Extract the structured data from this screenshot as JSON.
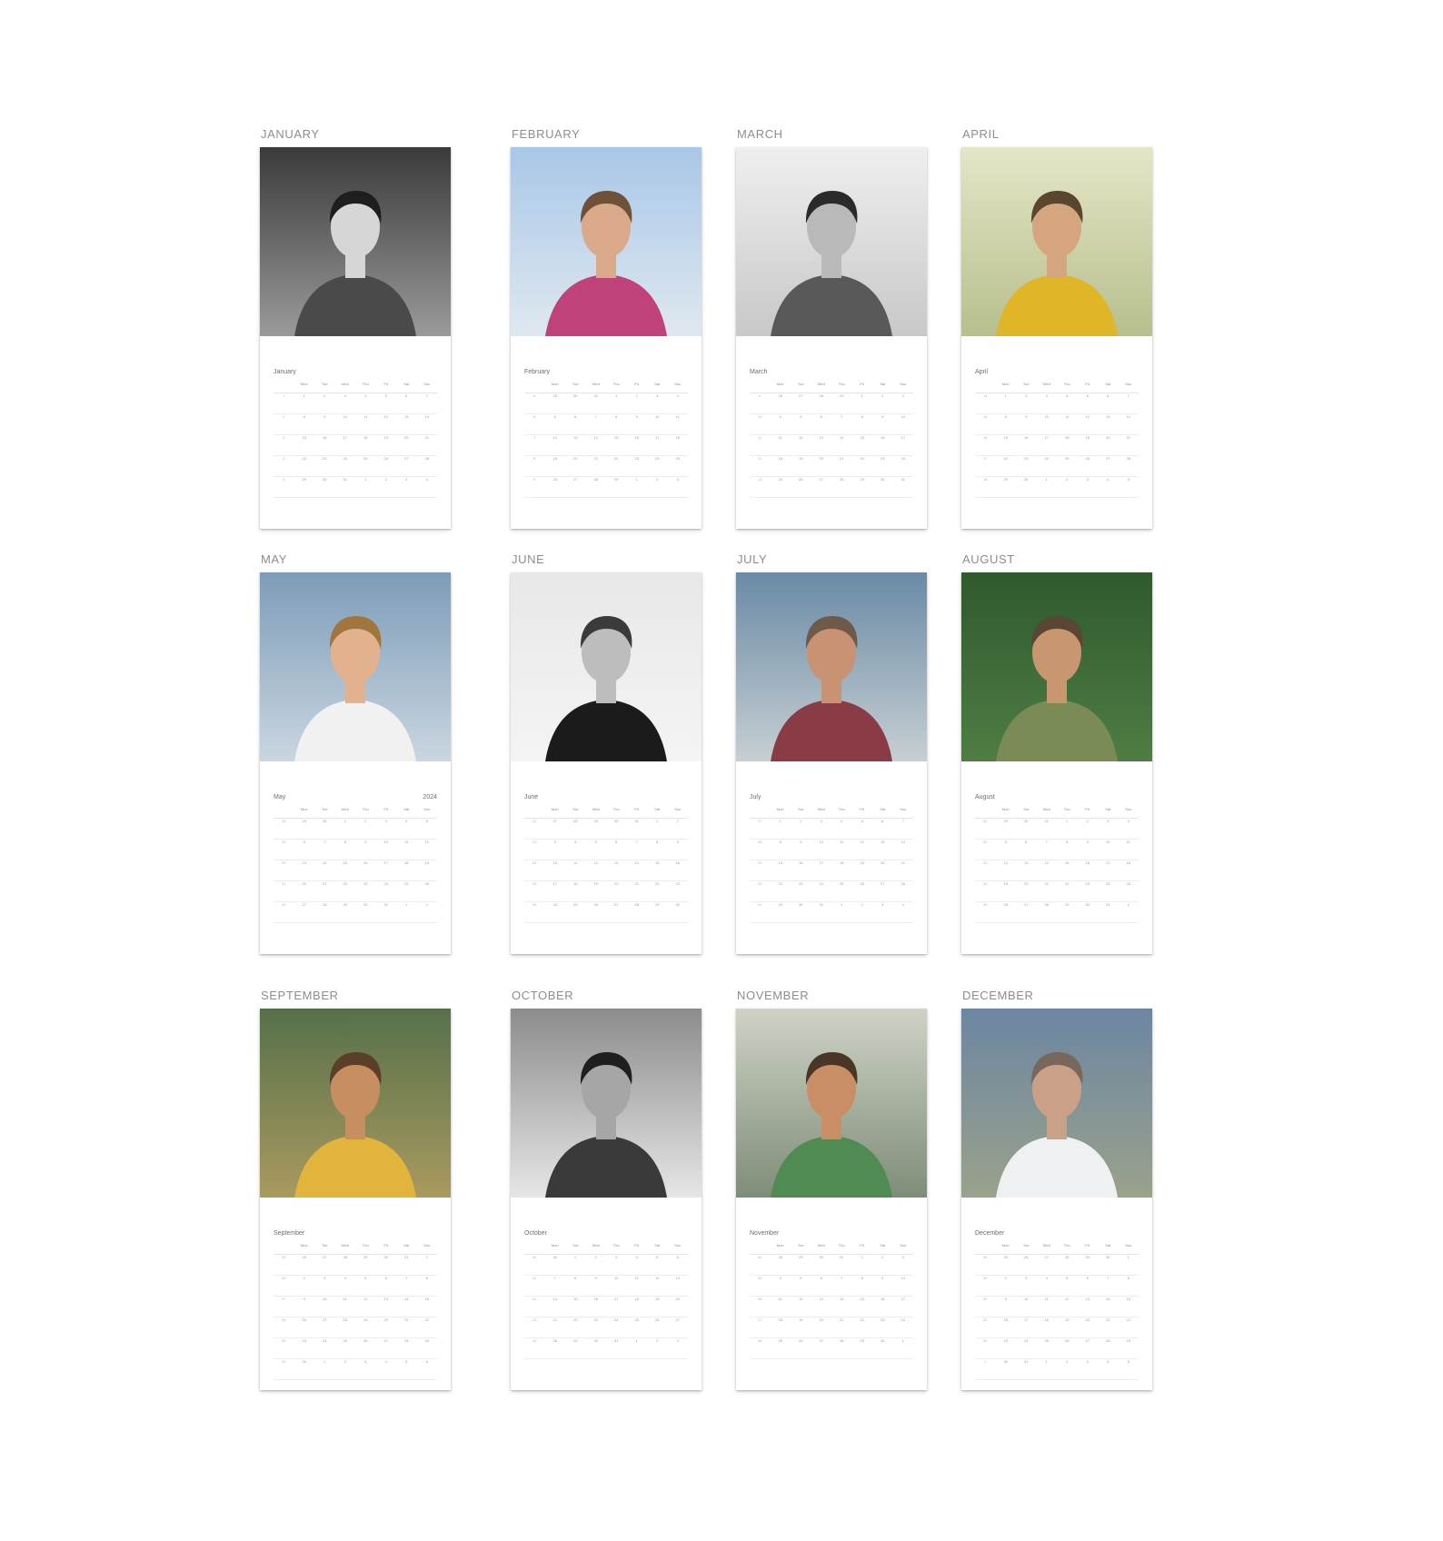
{
  "calendar": {
    "year": "2024",
    "weekday_headers": [
      "",
      "Mon",
      "Tue",
      "Wed",
      "Thu",
      "Fri",
      "Sat",
      "Sun"
    ],
    "months": [
      {
        "title": "JANUARY",
        "name": "January",
        "show_year": false,
        "photo": {
          "kind": "bw",
          "bg": "#3a3a3a",
          "bg2": "#9a9a9a",
          "skin": "#d6d6d6",
          "hair": "#1e1e1e",
          "top": "#4a4a4a"
        },
        "rows": [
          [
            "1",
            "1",
            "2",
            "3",
            "4",
            "5",
            "6",
            "7"
          ],
          [
            "2",
            "8",
            "9",
            "10",
            "11",
            "12",
            "13",
            "14"
          ],
          [
            "3",
            "15",
            "16",
            "17",
            "18",
            "19",
            "20",
            "21"
          ],
          [
            "4",
            "22",
            "23",
            "24",
            "25",
            "26",
            "27",
            "28"
          ],
          [
            "5",
            "29",
            "30",
            "31",
            "1",
            "2",
            "3",
            "4"
          ]
        ]
      },
      {
        "title": "FEBRUARY",
        "name": "February",
        "show_year": false,
        "photo": {
          "kind": "color",
          "bg": "#a9c7e8",
          "bg2": "#dfe8ef",
          "skin": "#d9a98a",
          "hair": "#6e5138",
          "top": "#c0427a"
        },
        "rows": [
          [
            "5",
            "29",
            "30",
            "31",
            "1",
            "2",
            "3",
            "4"
          ],
          [
            "6",
            "5",
            "6",
            "7",
            "8",
            "9",
            "10",
            "11"
          ],
          [
            "7",
            "12",
            "13",
            "14",
            "15",
            "16",
            "17",
            "18"
          ],
          [
            "8",
            "19",
            "20",
            "21",
            "22",
            "23",
            "24",
            "25"
          ],
          [
            "9",
            "26",
            "27",
            "28",
            "29",
            "1",
            "2",
            "3"
          ]
        ]
      },
      {
        "title": "MARCH",
        "name": "March",
        "show_year": false,
        "photo": {
          "kind": "bw",
          "bg": "#efefef",
          "bg2": "#c8c8c8",
          "skin": "#b9b9b9",
          "hair": "#2a2a2a",
          "top": "#595959"
        },
        "rows": [
          [
            "9",
            "26",
            "27",
            "28",
            "29",
            "1",
            "2",
            "3"
          ],
          [
            "10",
            "4",
            "5",
            "6",
            "7",
            "8",
            "9",
            "10"
          ],
          [
            "11",
            "11",
            "12",
            "13",
            "14",
            "15",
            "16",
            "17"
          ],
          [
            "12",
            "18",
            "19",
            "20",
            "21",
            "22",
            "23",
            "24"
          ],
          [
            "13",
            "25",
            "26",
            "27",
            "28",
            "29",
            "30",
            "31"
          ]
        ]
      },
      {
        "title": "APRIL",
        "name": "April",
        "show_year": false,
        "photo": {
          "kind": "color",
          "bg": "#e4e6c6",
          "bg2": "#b7bf8d",
          "skin": "#d4a57f",
          "hair": "#5a452f",
          "top": "#e0b528"
        },
        "rows": [
          [
            "14",
            "1",
            "2",
            "3",
            "4",
            "5",
            "6",
            "7"
          ],
          [
            "15",
            "8",
            "9",
            "10",
            "11",
            "12",
            "13",
            "14"
          ],
          [
            "16",
            "15",
            "16",
            "17",
            "18",
            "19",
            "20",
            "21"
          ],
          [
            "17",
            "22",
            "23",
            "24",
            "25",
            "26",
            "27",
            "28"
          ],
          [
            "18",
            "29",
            "30",
            "1",
            "2",
            "3",
            "4",
            "5"
          ]
        ]
      },
      {
        "title": "MAY",
        "name": "May",
        "show_year": true,
        "photo": {
          "kind": "color",
          "bg": "#7e9cb8",
          "bg2": "#c9d6e0",
          "skin": "#e2b28e",
          "hair": "#a0763e",
          "top": "#f1f1f1"
        },
        "rows": [
          [
            "18",
            "29",
            "30",
            "1",
            "2",
            "3",
            "4",
            "5"
          ],
          [
            "19",
            "6",
            "7",
            "8",
            "9",
            "10",
            "11",
            "12"
          ],
          [
            "20",
            "13",
            "14",
            "15",
            "16",
            "17",
            "18",
            "19"
          ],
          [
            "21",
            "20",
            "21",
            "22",
            "23",
            "24",
            "25",
            "26"
          ],
          [
            "22",
            "27",
            "28",
            "29",
            "30",
            "31",
            "1",
            "2"
          ]
        ]
      },
      {
        "title": "JUNE",
        "name": "June",
        "show_year": false,
        "photo": {
          "kind": "bw",
          "bg": "#e8e8e8",
          "bg2": "#f4f4f4",
          "skin": "#bdbdbd",
          "hair": "#3b3b3b",
          "top": "#1b1b1b"
        },
        "rows": [
          [
            "22",
            "27",
            "28",
            "29",
            "30",
            "31",
            "1",
            "2"
          ],
          [
            "23",
            "3",
            "4",
            "5",
            "6",
            "7",
            "8",
            "9"
          ],
          [
            "24",
            "10",
            "11",
            "12",
            "13",
            "14",
            "15",
            "16"
          ],
          [
            "25",
            "17",
            "18",
            "19",
            "20",
            "21",
            "22",
            "23"
          ],
          [
            "26",
            "24",
            "25",
            "26",
            "27",
            "28",
            "29",
            "30"
          ]
        ]
      },
      {
        "title": "JULY",
        "name": "July",
        "show_year": false,
        "photo": {
          "kind": "color",
          "bg": "#6a8aa6",
          "bg2": "#c7cfd2",
          "skin": "#c99272",
          "hair": "#6d5a49",
          "top": "#8a3c46"
        },
        "rows": [
          [
            "27",
            "1",
            "2",
            "3",
            "4",
            "5",
            "6",
            "7"
          ],
          [
            "28",
            "8",
            "9",
            "10",
            "11",
            "12",
            "13",
            "14"
          ],
          [
            "29",
            "15",
            "16",
            "17",
            "18",
            "19",
            "20",
            "21"
          ],
          [
            "30",
            "22",
            "23",
            "24",
            "25",
            "26",
            "27",
            "28"
          ],
          [
            "31",
            "29",
            "30",
            "31",
            "1",
            "2",
            "3",
            "4"
          ]
        ]
      },
      {
        "title": "AUGUST",
        "name": "August",
        "show_year": false,
        "photo": {
          "kind": "color",
          "bg": "#2f5a2e",
          "bg2": "#4f7d44",
          "skin": "#c8976f",
          "hair": "#5b4534",
          "top": "#7a8b56"
        },
        "rows": [
          [
            "31",
            "29",
            "30",
            "31",
            "1",
            "2",
            "3",
            "4"
          ],
          [
            "32",
            "5",
            "6",
            "7",
            "8",
            "9",
            "10",
            "11"
          ],
          [
            "33",
            "12",
            "13",
            "14",
            "15",
            "16",
            "17",
            "18"
          ],
          [
            "34",
            "19",
            "20",
            "21",
            "22",
            "23",
            "24",
            "25"
          ],
          [
            "35",
            "26",
            "27",
            "28",
            "29",
            "30",
            "31",
            "1"
          ]
        ]
      },
      {
        "title": "SEPTEMBER",
        "name": "September",
        "show_year": false,
        "photo": {
          "kind": "color",
          "bg": "#56704a",
          "bg2": "#a99a5f",
          "skin": "#c78e62",
          "hair": "#5b3f28",
          "top": "#e3b43c"
        },
        "rows": [
          [
            "35",
            "26",
            "27",
            "28",
            "29",
            "30",
            "31",
            "1"
          ],
          [
            "36",
            "2",
            "3",
            "4",
            "5",
            "6",
            "7",
            "8"
          ],
          [
            "37",
            "9",
            "10",
            "11",
            "12",
            "13",
            "14",
            "15"
          ],
          [
            "38",
            "16",
            "17",
            "18",
            "19",
            "20",
            "21",
            "22"
          ],
          [
            "39",
            "23",
            "24",
            "25",
            "26",
            "27",
            "28",
            "29"
          ],
          [
            "40",
            "30",
            "1",
            "2",
            "3",
            "4",
            "5",
            "6"
          ]
        ]
      },
      {
        "title": "OCTOBER",
        "name": "October",
        "show_year": false,
        "photo": {
          "kind": "bw",
          "bg": "#8c8c8c",
          "bg2": "#e6e6e6",
          "skin": "#a6a6a6",
          "hair": "#1f1f1f",
          "top": "#3a3a3a"
        },
        "rows": [
          [
            "40",
            "30",
            "1",
            "2",
            "3",
            "4",
            "5",
            "6"
          ],
          [
            "41",
            "7",
            "8",
            "9",
            "10",
            "11",
            "12",
            "13"
          ],
          [
            "42",
            "14",
            "15",
            "16",
            "17",
            "18",
            "19",
            "20"
          ],
          [
            "43",
            "21",
            "22",
            "23",
            "24",
            "25",
            "26",
            "27"
          ],
          [
            "44",
            "28",
            "29",
            "30",
            "31",
            "1",
            "2",
            "3"
          ]
        ]
      },
      {
        "title": "NOVEMBER",
        "name": "November",
        "show_year": false,
        "photo": {
          "kind": "color",
          "bg": "#cfd3c6",
          "bg2": "#7e8d78",
          "skin": "#c98e66",
          "hair": "#4a3626",
          "top": "#4f8b52"
        },
        "rows": [
          [
            "44",
            "28",
            "29",
            "30",
            "31",
            "1",
            "2",
            "3"
          ],
          [
            "45",
            "4",
            "5",
            "6",
            "7",
            "8",
            "9",
            "10"
          ],
          [
            "46",
            "11",
            "12",
            "13",
            "14",
            "15",
            "16",
            "17"
          ],
          [
            "47",
            "18",
            "19",
            "20",
            "21",
            "22",
            "23",
            "24"
          ],
          [
            "48",
            "25",
            "26",
            "27",
            "28",
            "29",
            "30",
            "1"
          ]
        ]
      },
      {
        "title": "DECEMBER",
        "name": "December",
        "show_year": false,
        "photo": {
          "kind": "color",
          "bg": "#6c86a2",
          "bg2": "#9aa28b",
          "skin": "#caa088",
          "hair": "#77675c",
          "top": "#eef0f2"
        },
        "rows": [
          [
            "48",
            "25",
            "26",
            "27",
            "28",
            "29",
            "30",
            "1"
          ],
          [
            "49",
            "2",
            "3",
            "4",
            "5",
            "6",
            "7",
            "8"
          ],
          [
            "50",
            "9",
            "10",
            "11",
            "12",
            "13",
            "14",
            "15"
          ],
          [
            "51",
            "16",
            "17",
            "18",
            "19",
            "20",
            "21",
            "22"
          ],
          [
            "52",
            "23",
            "24",
            "25",
            "26",
            "27",
            "28",
            "29"
          ],
          [
            "1",
            "30",
            "31",
            "1",
            "2",
            "3",
            "4",
            "5"
          ]
        ]
      }
    ]
  }
}
